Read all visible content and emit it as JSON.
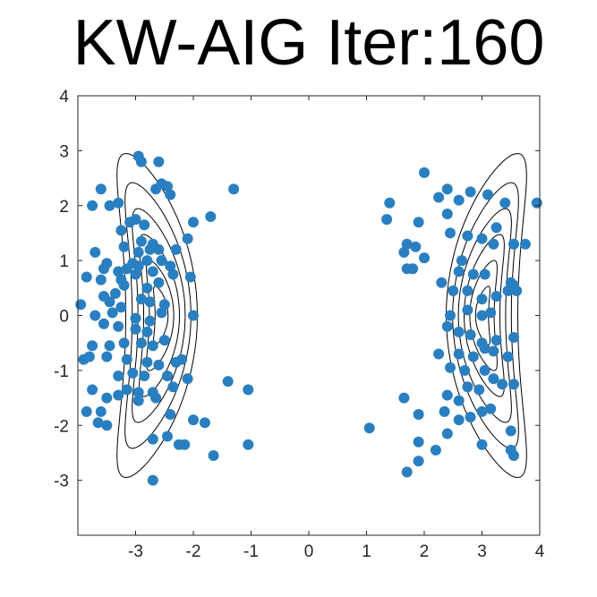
{
  "title": "KW-AIG Iter:160",
  "chart_data": {
    "type": "scatter",
    "title": "KW-AIG Iter:160",
    "xlabel": "",
    "ylabel": "",
    "xlim": [
      -4,
      4
    ],
    "ylim": [
      -4,
      4
    ],
    "xticks": [
      "-3",
      "-2",
      "-1",
      "0",
      "1",
      "2",
      "3",
      "4"
    ],
    "yticks": [
      "4",
      "3",
      "2",
      "1",
      "0",
      "-1",
      "-2",
      "-3"
    ],
    "ytick_values": [
      4,
      3,
      2,
      1,
      0,
      -1,
      -2,
      -3
    ],
    "xtick_values": [
      -3,
      -2,
      -1,
      0,
      1,
      2,
      3,
      4
    ],
    "grid": false,
    "legend": "none",
    "marker_color": "#2a7fc0",
    "contour_color": "#000000",
    "contours": "banana-shaped density level sets centered near x=-2.7 and x=2.9",
    "points": [
      [
        -2.95,
        2.9
      ],
      [
        -2.9,
        2.8
      ],
      [
        -2.6,
        2.8
      ],
      [
        -2.55,
        2.4
      ],
      [
        -2.65,
        2.3
      ],
      [
        -2.45,
        2.35
      ],
      [
        -2.4,
        2.2
      ],
      [
        -3.6,
        2.3
      ],
      [
        -3.75,
        2.0
      ],
      [
        -3.45,
        2.0
      ],
      [
        -3.3,
        2.05
      ],
      [
        -3.1,
        1.7
      ],
      [
        -3.0,
        1.75
      ],
      [
        -2.85,
        1.65
      ],
      [
        -3.25,
        1.55
      ],
      [
        -2.9,
        1.35
      ],
      [
        -3.2,
        1.25
      ],
      [
        -2.75,
        1.2
      ],
      [
        -2.7,
        1.3
      ],
      [
        -2.95,
        1.15
      ],
      [
        -2.6,
        1.2
      ],
      [
        -2.55,
        1.0
      ],
      [
        -3.05,
        0.95
      ],
      [
        -2.8,
        1.0
      ],
      [
        -2.95,
        0.9
      ],
      [
        -3.15,
        0.85
      ],
      [
        -3.3,
        0.8
      ],
      [
        -3.55,
        0.85
      ],
      [
        -3.5,
        0.95
      ],
      [
        -3.7,
        1.15
      ],
      [
        -3.85,
        0.7
      ],
      [
        -3.6,
        0.65
      ],
      [
        -3.25,
        0.65
      ],
      [
        -3.0,
        0.75
      ],
      [
        -2.7,
        0.8
      ],
      [
        -2.4,
        0.9
      ],
      [
        -2.3,
        1.2
      ],
      [
        -2.1,
        1.4
      ],
      [
        -2.0,
        1.7
      ],
      [
        -1.7,
        1.8
      ],
      [
        -1.3,
        2.3
      ],
      [
        -2.05,
        0.7
      ],
      [
        -2.35,
        0.75
      ],
      [
        -2.6,
        0.6
      ],
      [
        -2.8,
        0.5
      ],
      [
        -3.2,
        0.55
      ],
      [
        -3.35,
        0.4
      ],
      [
        -3.55,
        0.35
      ],
      [
        -3.45,
        0.25
      ],
      [
        -3.25,
        0.15
      ],
      [
        -2.9,
        0.3
      ],
      [
        -2.75,
        0.25
      ],
      [
        -2.5,
        0.2
      ],
      [
        -3.95,
        0.2
      ],
      [
        -3.7,
        0.0
      ],
      [
        -3.4,
        0.05
      ],
      [
        -3.0,
        -0.05
      ],
      [
        -2.75,
        -0.1
      ],
      [
        -2.55,
        0.05
      ],
      [
        -2.0,
        0.0
      ],
      [
        -3.55,
        -0.15
      ],
      [
        -3.3,
        -0.2
      ],
      [
        -3.0,
        -0.25
      ],
      [
        -2.8,
        -0.3
      ],
      [
        -2.5,
        -0.45
      ],
      [
        -3.75,
        -0.55
      ],
      [
        -3.45,
        -0.55
      ],
      [
        -3.2,
        -0.5
      ],
      [
        -2.9,
        -0.5
      ],
      [
        -2.7,
        -0.55
      ],
      [
        -3.9,
        -0.8
      ],
      [
        -3.8,
        -0.75
      ],
      [
        -3.5,
        -0.75
      ],
      [
        -3.15,
        -0.8
      ],
      [
        -2.8,
        -0.85
      ],
      [
        -2.6,
        -0.9
      ],
      [
        -2.3,
        -0.85
      ],
      [
        -2.2,
        -0.8
      ],
      [
        -2.45,
        -1.1
      ],
      [
        -3.05,
        -1.05
      ],
      [
        -3.3,
        -1.1
      ],
      [
        -2.85,
        -1.1
      ],
      [
        -3.75,
        -1.35
      ],
      [
        -3.15,
        -1.35
      ],
      [
        -2.95,
        -1.4
      ],
      [
        -2.7,
        -1.4
      ],
      [
        -2.35,
        -1.3
      ],
      [
        -2.1,
        -1.15
      ],
      [
        -1.4,
        -1.2
      ],
      [
        -1.05,
        -1.35
      ],
      [
        -3.5,
        -1.5
      ],
      [
        -3.3,
        -1.45
      ],
      [
        -2.95,
        -1.55
      ],
      [
        -2.65,
        -1.5
      ],
      [
        -3.6,
        -1.75
      ],
      [
        -3.85,
        -1.75
      ],
      [
        -3.65,
        -1.95
      ],
      [
        -3.5,
        -2.0
      ],
      [
        -2.4,
        -1.8
      ],
      [
        -2.0,
        -1.9
      ],
      [
        -1.8,
        -1.95
      ],
      [
        -2.7,
        -2.25
      ],
      [
        -2.45,
        -2.2
      ],
      [
        -2.25,
        -2.35
      ],
      [
        -2.15,
        -2.35
      ],
      [
        -1.65,
        -2.55
      ],
      [
        -1.05,
        -2.35
      ],
      [
        -2.7,
        -3.0
      ],
      [
        1.4,
        2.05
      ],
      [
        1.35,
        1.75
      ],
      [
        2.0,
        2.6
      ],
      [
        2.25,
        2.15
      ],
      [
        2.4,
        2.3
      ],
      [
        2.6,
        2.1
      ],
      [
        2.8,
        2.25
      ],
      [
        3.1,
        2.2
      ],
      [
        3.4,
        2.05
      ],
      [
        3.95,
        2.05
      ],
      [
        1.9,
        1.7
      ],
      [
        2.4,
        1.85
      ],
      [
        2.45,
        1.5
      ],
      [
        2.75,
        1.45
      ],
      [
        3.0,
        1.4
      ],
      [
        3.2,
        1.3
      ],
      [
        3.25,
        1.6
      ],
      [
        3.55,
        1.3
      ],
      [
        3.75,
        1.3
      ],
      [
        1.7,
        1.3
      ],
      [
        1.85,
        1.25
      ],
      [
        1.65,
        1.15
      ],
      [
        2.0,
        1.05
      ],
      [
        2.65,
        1.0
      ],
      [
        2.6,
        0.8
      ],
      [
        2.85,
        0.75
      ],
      [
        3.05,
        0.75
      ],
      [
        3.5,
        0.6
      ],
      [
        3.6,
        0.45
      ],
      [
        1.7,
        0.85
      ],
      [
        1.8,
        0.85
      ],
      [
        2.3,
        0.6
      ],
      [
        2.5,
        0.45
      ],
      [
        2.75,
        0.45
      ],
      [
        3.0,
        0.3
      ],
      [
        3.25,
        0.35
      ],
      [
        3.45,
        0.45
      ],
      [
        3.55,
        0.55
      ],
      [
        2.45,
        0.0
      ],
      [
        2.75,
        0.1
      ],
      [
        3.0,
        0.0
      ],
      [
        3.15,
        0.05
      ],
      [
        2.4,
        -0.2
      ],
      [
        2.6,
        -0.3
      ],
      [
        2.8,
        -0.35
      ],
      [
        3.0,
        -0.5
      ],
      [
        3.25,
        -0.45
      ],
      [
        3.55,
        -0.4
      ],
      [
        2.25,
        -0.7
      ],
      [
        2.6,
        -0.7
      ],
      [
        2.85,
        -0.75
      ],
      [
        3.05,
        -0.6
      ],
      [
        3.2,
        -0.65
      ],
      [
        3.45,
        -0.75
      ],
      [
        2.45,
        -0.95
      ],
      [
        2.7,
        -1.0
      ],
      [
        3.05,
        -1.0
      ],
      [
        3.2,
        -1.15
      ],
      [
        3.35,
        -1.25
      ],
      [
        3.55,
        -1.25
      ],
      [
        2.4,
        -1.45
      ],
      [
        2.6,
        -1.55
      ],
      [
        2.95,
        -1.35
      ],
      [
        2.75,
        -1.3
      ],
      [
        1.65,
        -1.5
      ],
      [
        2.35,
        -1.75
      ],
      [
        2.6,
        -1.9
      ],
      [
        2.8,
        -1.85
      ],
      [
        3.0,
        -1.75
      ],
      [
        3.15,
        -1.7
      ],
      [
        1.9,
        -1.8
      ],
      [
        2.4,
        -2.15
      ],
      [
        1.05,
        -2.05
      ],
      [
        3.5,
        -2.1
      ],
      [
        1.9,
        -2.3
      ],
      [
        2.2,
        -2.45
      ],
      [
        3.0,
        -2.35
      ],
      [
        3.5,
        -2.45
      ],
      [
        3.55,
        -2.55
      ],
      [
        1.9,
        -2.65
      ],
      [
        1.7,
        -2.85
      ]
    ]
  }
}
